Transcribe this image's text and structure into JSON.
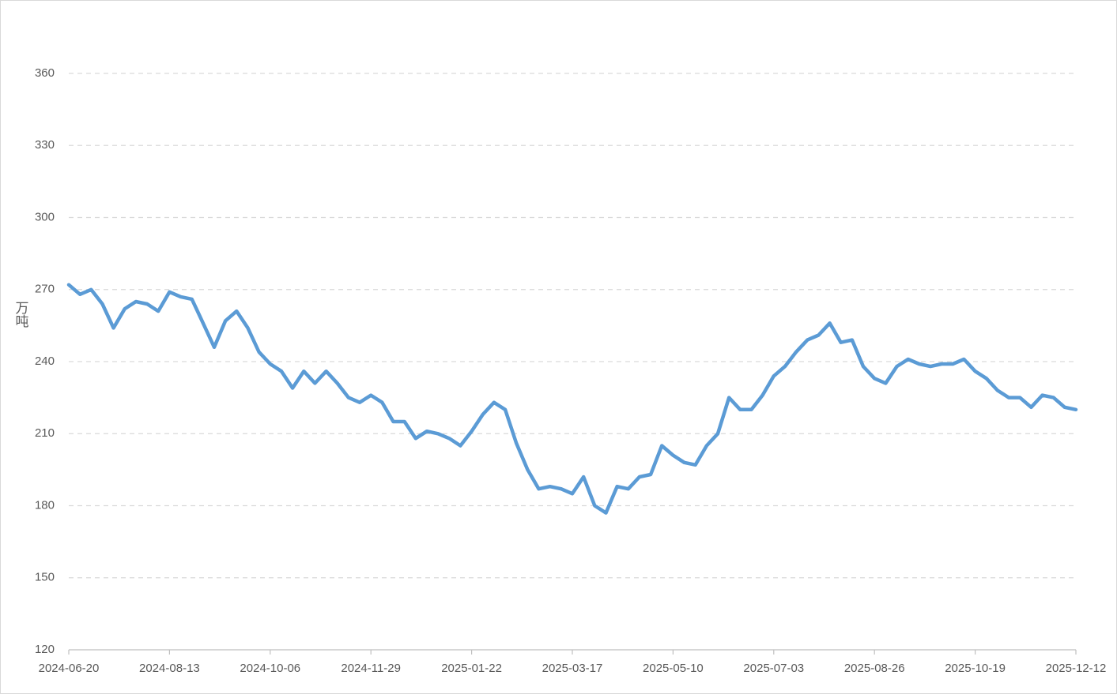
{
  "chart_data": {
    "type": "line",
    "y_label": "万吨",
    "x": [
      "2024-06-20",
      "2024-06-26",
      "2024-07-02",
      "2024-07-08",
      "2024-07-14",
      "2024-07-20",
      "2024-07-26",
      "2024-08-01",
      "2024-08-07",
      "2024-08-13",
      "2024-08-19",
      "2024-08-25",
      "2024-08-31",
      "2024-09-06",
      "2024-09-12",
      "2024-09-18",
      "2024-09-24",
      "2024-09-30",
      "2024-10-06",
      "2024-10-12",
      "2024-10-18",
      "2024-10-24",
      "2024-10-30",
      "2024-11-05",
      "2024-11-11",
      "2024-11-17",
      "2024-11-23",
      "2024-11-29",
      "2024-12-05",
      "2024-12-11",
      "2024-12-17",
      "2024-12-23",
      "2024-12-29",
      "2025-01-04",
      "2025-01-10",
      "2025-01-16",
      "2025-01-22",
      "2025-01-28",
      "2025-02-03",
      "2025-02-09",
      "2025-02-15",
      "2025-02-21",
      "2025-02-27",
      "2025-03-05",
      "2025-03-11",
      "2025-03-17",
      "2025-03-23",
      "2025-03-29",
      "2025-04-04",
      "2025-04-10",
      "2025-04-16",
      "2025-04-22",
      "2025-04-28",
      "2025-05-04",
      "2025-05-10",
      "2025-05-16",
      "2025-05-22",
      "2025-05-28",
      "2025-06-03",
      "2025-06-09",
      "2025-06-15",
      "2025-06-21",
      "2025-06-27",
      "2025-07-03",
      "2025-07-09",
      "2025-07-15",
      "2025-07-21",
      "2025-07-27",
      "2025-08-02",
      "2025-08-08",
      "2025-08-14",
      "2025-08-20",
      "2025-08-26",
      "2025-09-01",
      "2025-09-07",
      "2025-09-13",
      "2025-09-19",
      "2025-09-25",
      "2025-10-01",
      "2025-10-07",
      "2025-10-13",
      "2025-10-19",
      "2025-10-25",
      "2025-10-31",
      "2025-11-06",
      "2025-11-12",
      "2025-11-18",
      "2025-11-24",
      "2025-11-30",
      "2025-12-06",
      "2025-12-12"
    ],
    "series": [
      {
        "color": "#5b9bd5",
        "values": [
          272,
          268,
          270,
          264,
          254,
          262,
          265,
          264,
          261,
          269,
          267,
          266,
          256,
          246,
          257,
          261,
          254,
          244,
          239,
          236,
          229,
          236,
          231,
          236,
          231,
          225,
          223,
          226,
          223,
          215,
          215,
          208,
          211,
          210,
          208,
          205,
          211,
          218,
          223,
          220,
          206,
          195,
          187,
          188,
          187,
          185,
          192,
          180,
          177,
          188,
          187,
          192,
          193,
          205,
          201,
          198,
          197,
          205,
          210,
          225,
          220,
          220,
          226,
          234,
          238,
          244,
          249,
          251,
          256,
          248,
          249,
          238,
          233,
          231,
          238,
          241,
          239,
          238,
          239,
          239,
          241,
          236,
          233,
          228,
          225,
          225,
          221,
          226,
          225,
          221,
          220
        ]
      }
    ],
    "xlim": [
      "2024-06-20",
      "2025-12-12"
    ],
    "xticks": [
      "2024-06-20",
      "2024-08-13",
      "2024-10-06",
      "2024-11-29",
      "2025-01-22",
      "2025-03-17",
      "2025-05-10",
      "2025-07-03",
      "2025-08-26",
      "2025-10-19",
      "2025-12-12"
    ],
    "ylim": [
      120,
      360
    ],
    "yticks": [
      120,
      150,
      180,
      210,
      240,
      270,
      300,
      330,
      360
    ],
    "grid": true
  }
}
